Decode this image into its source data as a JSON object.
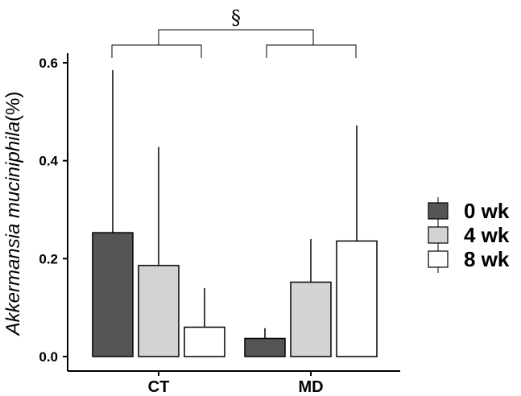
{
  "chart_data": {
    "type": "bar",
    "categories": [
      "CT",
      "MD"
    ],
    "series": [
      {
        "name": "0 wk",
        "values": [
          0.253,
          0.037
        ],
        "error_upper": [
          0.585,
          0.058
        ],
        "color": "#555555"
      },
      {
        "name": "4 wk",
        "values": [
          0.186,
          0.152
        ],
        "error_upper": [
          0.428,
          0.24
        ],
        "color": "#d3d3d3"
      },
      {
        "name": "8 wk",
        "values": [
          0.06,
          0.236
        ],
        "error_upper": [
          0.14,
          0.472
        ],
        "color": "#ffffff"
      }
    ],
    "ylabel_italic": "Akkermansia muciniphila",
    "ylabel_suffix": "(%)",
    "ylim": [
      0,
      0.6
    ],
    "yticks": [
      "0.0",
      "0.2",
      "0.4",
      "0.6"
    ],
    "significance_marker": "§",
    "legend_position": "right",
    "grid": false
  }
}
